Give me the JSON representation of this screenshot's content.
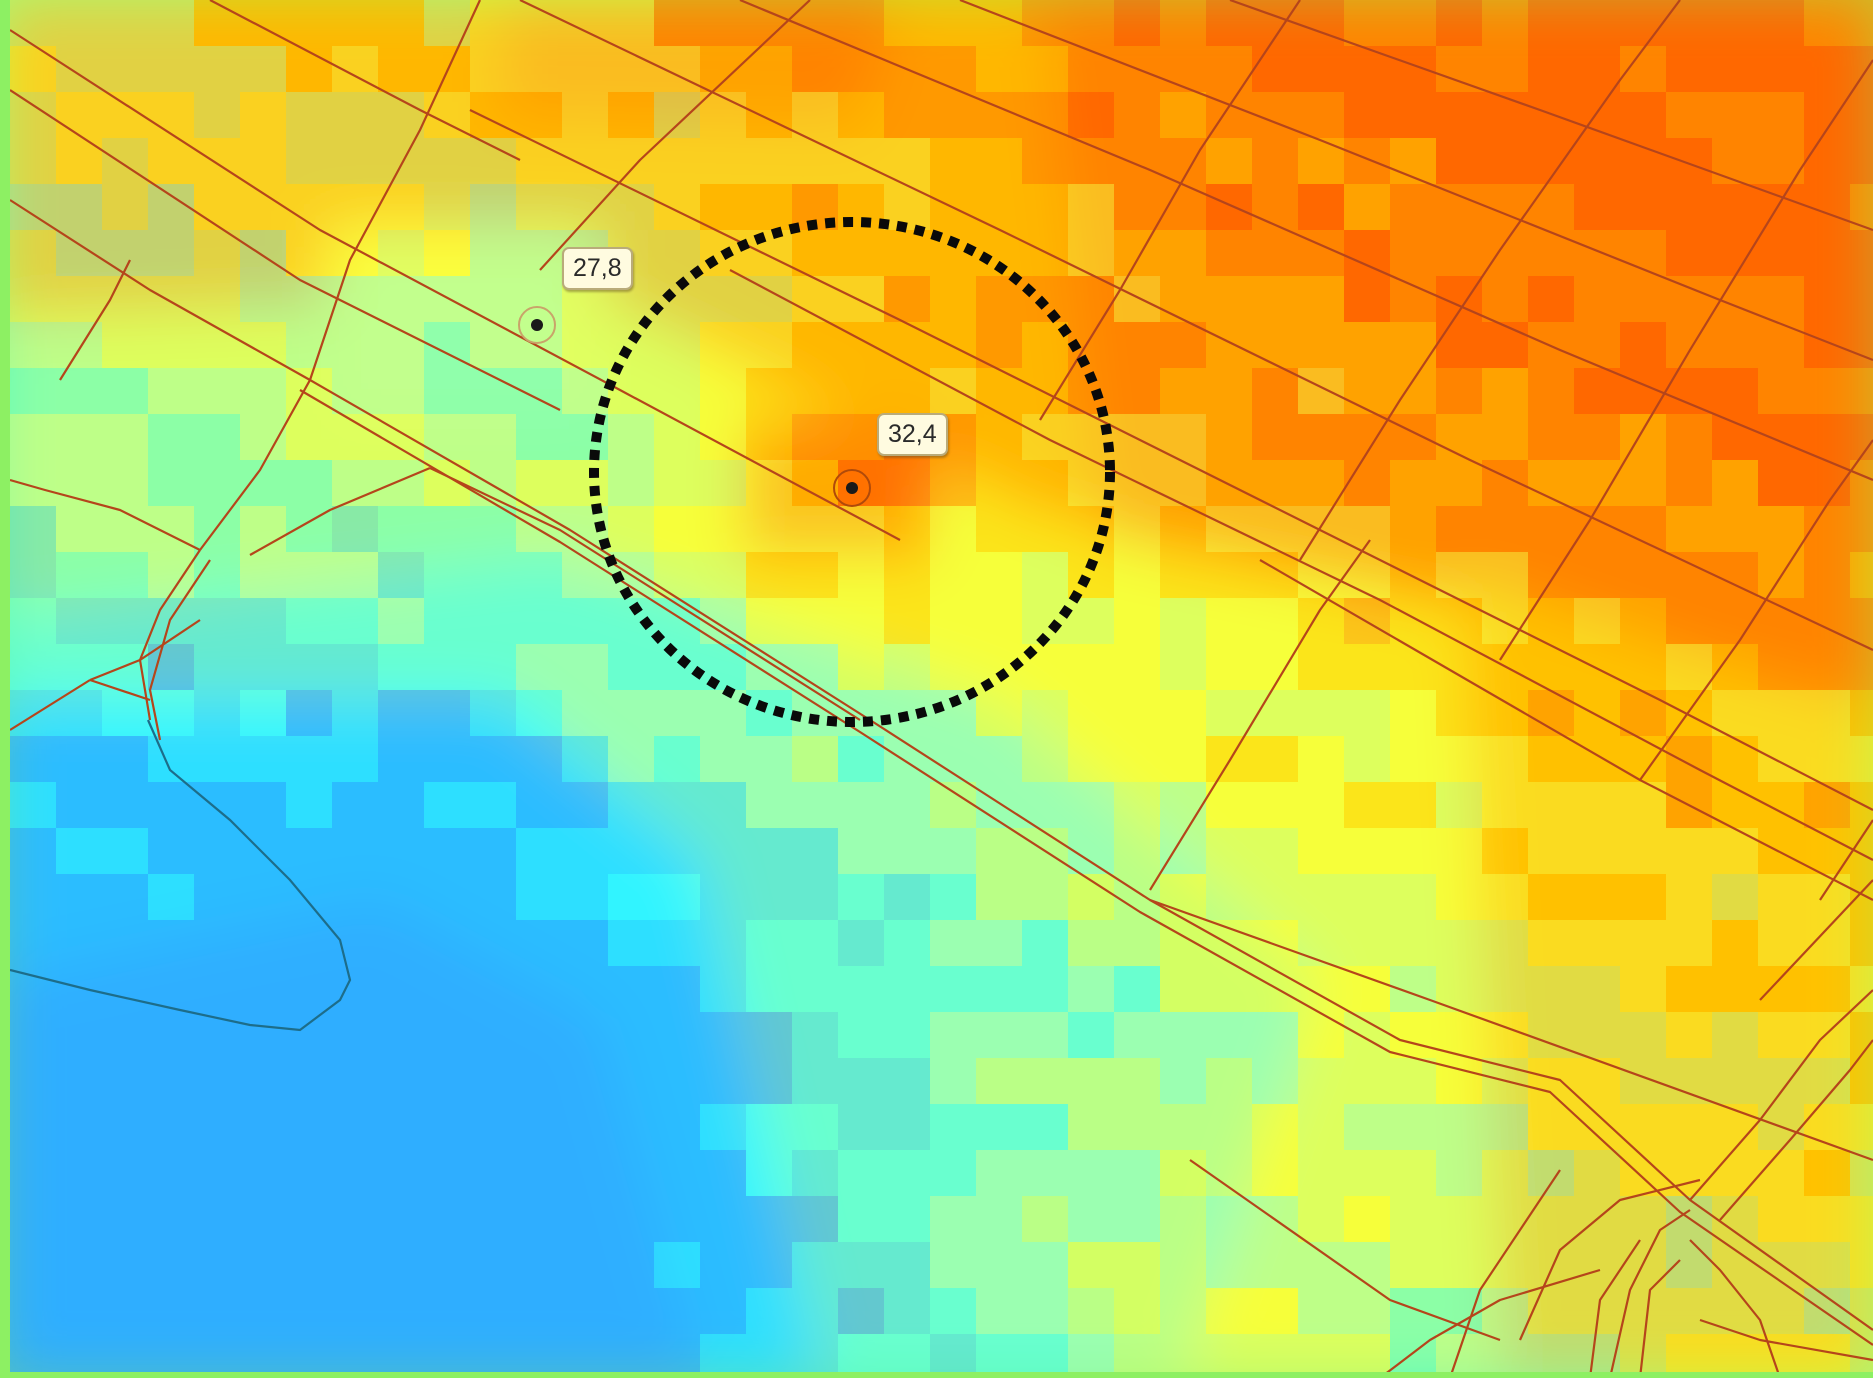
{
  "map": {
    "points": [
      {
        "name": "point-a",
        "value": "27,8"
      },
      {
        "name": "point-b",
        "value": "32,4"
      }
    ],
    "colors": {
      "frame": "#8df063",
      "road": "#b5451b",
      "shoreline": "#1d6d8a",
      "circle": "#0a0a0a",
      "ramp": [
        "#2a9bff",
        "#2dd8ff",
        "#35ffff",
        "#8fffc8",
        "#c9ff7a",
        "#f5ff3a",
        "#ffd000",
        "#ff9900",
        "#ff6600"
      ]
    }
  }
}
